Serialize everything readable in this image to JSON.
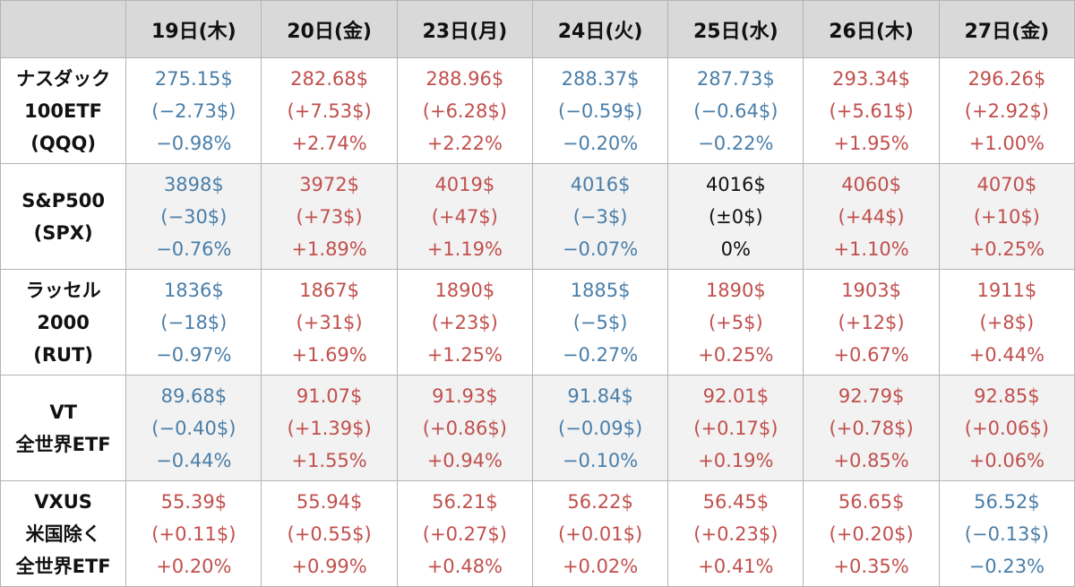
{
  "header": {
    "corner": "",
    "dates": [
      "19日(木)",
      "20日(金)",
      "23日(月)",
      "24日(火)",
      "25日(水)",
      "26日(木)",
      "27日(金)"
    ]
  },
  "colors": {
    "up": "#c0504d",
    "down": "#4a7ea8",
    "flat": "#111111"
  },
  "rows": [
    {
      "label_lines": [
        "ナスダック",
        "100ETF",
        "(QQQ)"
      ],
      "cells": [
        {
          "trend": "down",
          "price": "275.15$",
          "change": "(−2.73$)",
          "pct": "−0.98%"
        },
        {
          "trend": "up",
          "price": "282.68$",
          "change": "(+7.53$)",
          "pct": "+2.74%"
        },
        {
          "trend": "up",
          "price": "288.96$",
          "change": "(+6.28$)",
          "pct": "+2.22%"
        },
        {
          "trend": "down",
          "price": "288.37$",
          "change": "(−0.59$)",
          "pct": "−0.20%"
        },
        {
          "trend": "down",
          "price": "287.73$",
          "change": "(−0.64$)",
          "pct": "−0.22%"
        },
        {
          "trend": "up",
          "price": "293.34$",
          "change": "(+5.61$)",
          "pct": "+1.95%"
        },
        {
          "trend": "up",
          "price": "296.26$",
          "change": "(+2.92$)",
          "pct": "+1.00%"
        }
      ]
    },
    {
      "label_lines": [
        "S&P500",
        "(SPX)"
      ],
      "cells": [
        {
          "trend": "down",
          "price": "3898$",
          "change": "(−30$)",
          "pct": "−0.76%"
        },
        {
          "trend": "up",
          "price": "3972$",
          "change": "(+73$)",
          "pct": "+1.89%"
        },
        {
          "trend": "up",
          "price": "4019$",
          "change": "(+47$)",
          "pct": "+1.19%"
        },
        {
          "trend": "down",
          "price": "4016$",
          "change": "(−3$)",
          "pct": "−0.07%"
        },
        {
          "trend": "flat",
          "price": "4016$",
          "change": "(±0$)",
          "pct": "0%"
        },
        {
          "trend": "up",
          "price": "4060$",
          "change": "(+44$)",
          "pct": "+1.10%"
        },
        {
          "trend": "up",
          "price": "4070$",
          "change": "(+10$)",
          "pct": "+0.25%"
        }
      ]
    },
    {
      "label_lines": [
        "ラッセル",
        "2000",
        "(RUT)"
      ],
      "cells": [
        {
          "trend": "down",
          "price": "1836$",
          "change": "(−18$)",
          "pct": "−0.97%"
        },
        {
          "trend": "up",
          "price": "1867$",
          "change": "(+31$)",
          "pct": "+1.69%"
        },
        {
          "trend": "up",
          "price": "1890$",
          "change": "(+23$)",
          "pct": "+1.25%"
        },
        {
          "trend": "down",
          "price": "1885$",
          "change": "(−5$)",
          "pct": "−0.27%"
        },
        {
          "trend": "up",
          "price": "1890$",
          "change": "(+5$)",
          "pct": "+0.25%"
        },
        {
          "trend": "up",
          "price": "1903$",
          "change": "(+12$)",
          "pct": "+0.67%"
        },
        {
          "trend": "up",
          "price": "1911$",
          "change": "(+8$)",
          "pct": "+0.44%"
        }
      ]
    },
    {
      "label_lines": [
        "VT",
        "全世界ETF"
      ],
      "cells": [
        {
          "trend": "down",
          "price": "89.68$",
          "change": "(−0.40$)",
          "pct": "−0.44%"
        },
        {
          "trend": "up",
          "price": "91.07$",
          "change": "(+1.39$)",
          "pct": "+1.55%"
        },
        {
          "trend": "up",
          "price": "91.93$",
          "change": "(+0.86$)",
          "pct": "+0.94%"
        },
        {
          "trend": "down",
          "price": "91.84$",
          "change": "(−0.09$)",
          "pct": "−0.10%"
        },
        {
          "trend": "up",
          "price": "92.01$",
          "change": "(+0.17$)",
          "pct": "+0.19%"
        },
        {
          "trend": "up",
          "price": "92.79$",
          "change": "(+0.78$)",
          "pct": "+0.85%"
        },
        {
          "trend": "up",
          "price": "92.85$",
          "change": "(+0.06$)",
          "pct": "+0.06%"
        }
      ]
    },
    {
      "label_lines": [
        "VXUS",
        "米国除く",
        "全世界ETF"
      ],
      "cells": [
        {
          "trend": "up",
          "price": "55.39$",
          "change": "(+0.11$)",
          "pct": "+0.20%"
        },
        {
          "trend": "up",
          "price": "55.94$",
          "change": "(+0.55$)",
          "pct": "+0.99%"
        },
        {
          "trend": "up",
          "price": "56.21$",
          "change": "(+0.27$)",
          "pct": "+0.48%"
        },
        {
          "trend": "up",
          "price": "56.22$",
          "change": "(+0.01$)",
          "pct": "+0.02%"
        },
        {
          "trend": "up",
          "price": "56.45$",
          "change": "(+0.23$)",
          "pct": "+0.41%"
        },
        {
          "trend": "up",
          "price": "56.65$",
          "change": "(+0.20$)",
          "pct": "+0.35%"
        },
        {
          "trend": "down",
          "price": "56.52$",
          "change": "(−0.13$)",
          "pct": "−0.23%"
        }
      ]
    }
  ]
}
